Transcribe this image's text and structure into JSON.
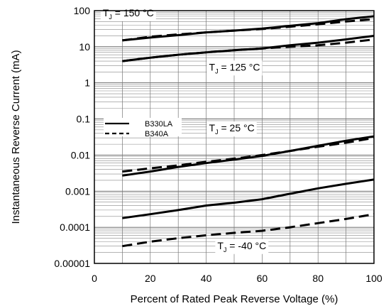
{
  "chart_data": {
    "type": "line",
    "title": "",
    "xlabel": "Percent of Rated Peak Reverse Voltage (%)",
    "ylabel": "Instantaneous Reverse Current (mA)",
    "xlim": [
      0,
      100
    ],
    "ylim": [
      1e-05,
      100
    ],
    "yscale": "log",
    "grid": true,
    "x_ticks": [
      0,
      20,
      40,
      60,
      80,
      100
    ],
    "x_tick_labels": [
      "0",
      "20",
      "40",
      "60",
      "80",
      "100"
    ],
    "y_ticks": [
      1e-05,
      0.0001,
      0.001,
      0.01,
      0.1,
      1,
      10,
      100
    ],
    "y_tick_labels": [
      "0.00001",
      "0.0001",
      "0.001",
      "0.01",
      "0.1",
      "1",
      "10",
      "100"
    ],
    "legend": {
      "placement": "middle-left",
      "entries": [
        {
          "label": "B330LA",
          "style": "solid"
        },
        {
          "label": "B340A",
          "style": "dashed"
        }
      ]
    },
    "annotations": [
      {
        "main": "T",
        "sub": "J",
        "rest": " = 150 °C",
        "x": 3,
        "y": 70
      },
      {
        "main": "T",
        "sub": "J",
        "rest": " = 125 °C",
        "x": 41,
        "y": 2.2
      },
      {
        "main": "T",
        "sub": "J",
        "rest": " = 25 °C",
        "x": 41,
        "y": 0.045
      },
      {
        "main": "T",
        "sub": "J",
        "rest": " = -40 °C",
        "x": 44,
        "y": 2.5e-05
      }
    ],
    "series": [
      {
        "group": "150",
        "device": "B330LA",
        "style": "solid",
        "x": [
          10,
          20,
          30,
          40,
          50,
          60,
          70,
          80,
          90,
          100
        ],
        "y": [
          15,
          18,
          21,
          25,
          28,
          32,
          38,
          45,
          58,
          70
        ]
      },
      {
        "group": "150",
        "device": "B340A",
        "style": "dashed",
        "x": [
          10,
          20,
          30,
          40,
          50,
          60,
          70,
          80,
          90,
          100
        ],
        "y": [
          15,
          19,
          22,
          25,
          28,
          31,
          36,
          42,
          50,
          58
        ]
      },
      {
        "group": "125",
        "device": "B330LA",
        "style": "solid",
        "x": [
          10,
          20,
          30,
          40,
          50,
          60,
          70,
          80,
          90,
          100
        ],
        "y": [
          4,
          5,
          6,
          7,
          8,
          9,
          11,
          13,
          16,
          20
        ]
      },
      {
        "group": "125",
        "device": "B340A",
        "style": "dashed",
        "x": [
          10,
          20,
          30,
          40,
          50,
          60,
          70,
          80,
          90,
          100
        ],
        "y": [
          4,
          5,
          6,
          7,
          8,
          9,
          10,
          11,
          13,
          16
        ]
      },
      {
        "group": "25",
        "device": "B330LA",
        "style": "solid",
        "x": [
          10,
          20,
          30,
          40,
          50,
          60,
          70,
          80,
          90,
          100
        ],
        "y": [
          0.0027,
          0.0035,
          0.0047,
          0.006,
          0.0075,
          0.0095,
          0.013,
          0.018,
          0.025,
          0.033
        ]
      },
      {
        "group": "25",
        "device": "B340A",
        "style": "dashed",
        "x": [
          10,
          20,
          30,
          40,
          50,
          60,
          70,
          80,
          90,
          100
        ],
        "y": [
          0.0035,
          0.0043,
          0.0052,
          0.0065,
          0.008,
          0.01,
          0.013,
          0.017,
          0.022,
          0.03
        ]
      },
      {
        "group": "-40",
        "device": "B330LA",
        "style": "solid",
        "x": [
          10,
          20,
          30,
          40,
          50,
          60,
          70,
          80,
          90,
          100
        ],
        "y": [
          0.00018,
          0.00023,
          0.0003,
          0.0004,
          0.00048,
          0.0006,
          0.00085,
          0.0012,
          0.0016,
          0.0021
        ]
      },
      {
        "group": "-40",
        "device": "B340A",
        "style": "dashed",
        "x": [
          10,
          20,
          30,
          40,
          50,
          60,
          70,
          80,
          90,
          100
        ],
        "y": [
          3e-05,
          4e-05,
          5e-05,
          6e-05,
          7e-05,
          8e-05,
          0.0001,
          0.00013,
          0.00017,
          0.00023
        ]
      }
    ]
  }
}
